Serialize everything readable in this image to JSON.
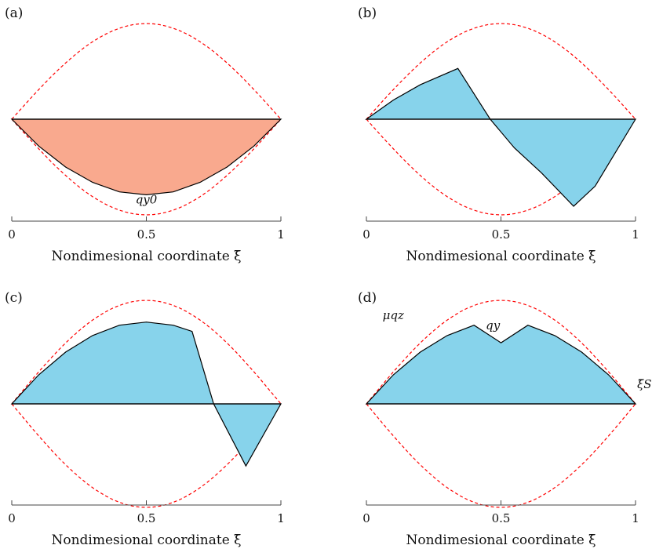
{
  "figure": {
    "xlabel": "Nondimesional coordinate ξ̄"
  },
  "chart_data": [
    {
      "panel_label": "(a)",
      "type": "area",
      "xlabel": "Nondimesional coordinate ξ̄",
      "xlim": [
        0,
        1
      ],
      "ylim": [
        -1.1,
        1.1
      ],
      "x_ticks": [
        "0",
        "0.5",
        "1"
      ],
      "colors": {
        "fill": "#F9A98E",
        "envelope": "#FF0000",
        "stroke": "#000000"
      },
      "series": [
        {
          "name": "qy0",
          "x": [
            0,
            0.1,
            0.2,
            0.3,
            0.4,
            0.5,
            0.6,
            0.7,
            0.8,
            0.9,
            1
          ],
          "y": [
            0,
            -0.28,
            -0.5,
            -0.66,
            -0.76,
            -0.79,
            -0.76,
            -0.66,
            -0.5,
            -0.28,
            0
          ]
        }
      ],
      "envelope": {
        "upper_peak": 1.0,
        "lower_peak": -1.0
      },
      "annotations": [
        {
          "text": "qy0",
          "x": 0.5,
          "y": -0.88
        }
      ]
    },
    {
      "panel_label": "(b)",
      "type": "area",
      "xlabel": "Nondimesional coordinate ξ̄",
      "xlim": [
        0,
        1
      ],
      "ylim": [
        -1.1,
        1.1
      ],
      "x_ticks": [
        "0",
        "0.5",
        "1"
      ],
      "colors": {
        "fill": "#87D3EB",
        "envelope": "#FF0000",
        "stroke": "#000000"
      },
      "series": [
        {
          "name": "",
          "x": [
            0,
            0.1,
            0.2,
            0.34,
            0.46,
            0.55,
            0.65,
            0.77,
            0.85,
            1
          ],
          "y": [
            0,
            0.2,
            0.36,
            0.53,
            0.0,
            -0.3,
            -0.56,
            -0.91,
            -0.7,
            0
          ]
        }
      ],
      "envelope": {
        "upper_peak": 1.0,
        "lower_peak": -1.0
      }
    },
    {
      "panel_label": "(c)",
      "type": "area",
      "xlabel": "Nondimesional coordinate ξ̄",
      "xlim": [
        0,
        1
      ],
      "ylim": [
        -1.1,
        1.1
      ],
      "x_ticks": [
        "0",
        "0.5",
        "1"
      ],
      "colors": {
        "fill": "#87D3EB",
        "envelope": "#FF0000",
        "stroke": "#000000"
      },
      "series": [
        {
          "name": "",
          "x": [
            0,
            0.1,
            0.2,
            0.3,
            0.4,
            0.5,
            0.6,
            0.67,
            0.75,
            0.87,
            1
          ],
          "y": [
            0,
            0.28,
            0.5,
            0.66,
            0.76,
            0.79,
            0.76,
            0.7,
            0.0,
            -0.6,
            0
          ]
        }
      ],
      "envelope": {
        "upper_peak": 1.0,
        "lower_peak": -1.0
      }
    },
    {
      "panel_label": "(d)",
      "type": "area",
      "xlabel": "Nondimesional coordinate ξ̄",
      "xlim": [
        0,
        1
      ],
      "ylim": [
        -1.1,
        1.1
      ],
      "x_ticks": [
        "0",
        "0.5",
        "1"
      ],
      "colors": {
        "fill": "#87D3EB",
        "envelope": "#FF0000",
        "stroke": "#000000"
      },
      "series": [
        {
          "name": "qy",
          "x": [
            0,
            0.1,
            0.2,
            0.3,
            0.4,
            0.5,
            0.6,
            0.7,
            0.8,
            0.9,
            1
          ],
          "y": [
            0,
            0.28,
            0.5,
            0.66,
            0.76,
            0.59,
            0.76,
            0.66,
            0.5,
            0.28,
            0
          ]
        }
      ],
      "envelope": {
        "upper_peak": 1.0,
        "lower_peak": -1.0
      },
      "annotations": [
        {
          "text": "μqz",
          "x": 0.1,
          "y": 0.82,
          "color": "#FF0000"
        },
        {
          "text": "qy",
          "x": 0.47,
          "y": 0.72
        },
        {
          "text": "ξ̄S",
          "x": 1.0,
          "y": 0.15
        }
      ]
    }
  ]
}
